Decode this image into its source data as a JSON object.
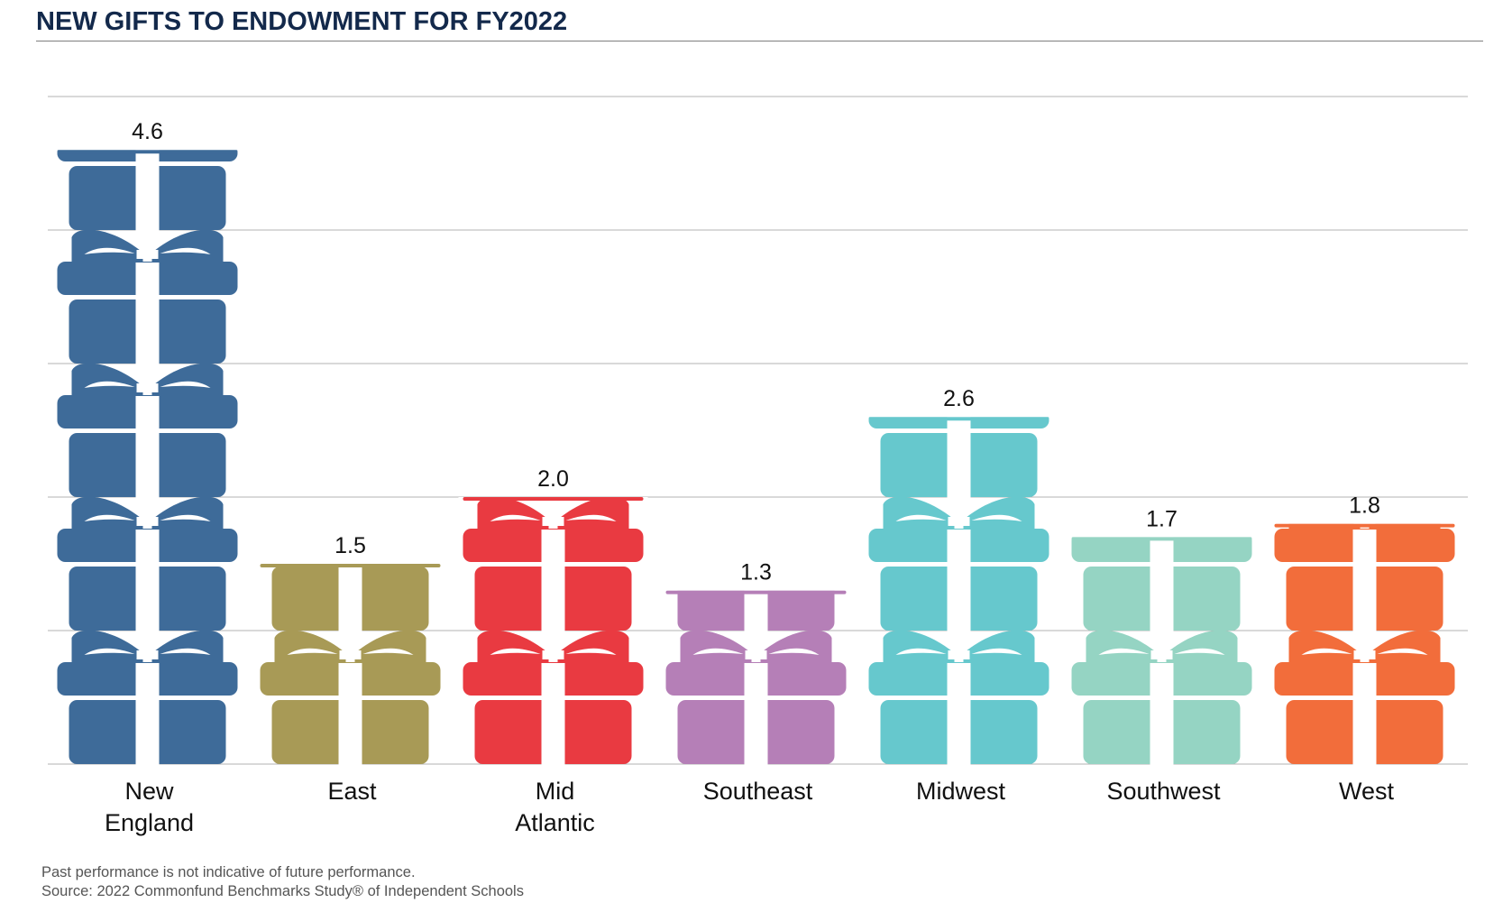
{
  "chart_data": {
    "type": "bar",
    "title": "NEW GIFTS TO ENDOWMENT FOR FY2022",
    "categories": [
      "New England",
      "East",
      "Mid Atlantic",
      "Southeast",
      "Midwest",
      "Southwest",
      "West"
    ],
    "category_lines": [
      [
        "New",
        "England"
      ],
      [
        "East"
      ],
      [
        "Mid",
        "Atlantic"
      ],
      [
        "Southeast"
      ],
      [
        "Midwest"
      ],
      [
        "Southwest"
      ],
      [
        "West"
      ]
    ],
    "values": [
      4.6,
      1.5,
      2.0,
      1.3,
      2.6,
      1.7,
      1.8
    ],
    "value_labels": [
      "4.6",
      "1.5",
      "2.0",
      "1.3",
      "2.6",
      "1.7",
      "1.8"
    ],
    "colors": [
      "#3e6b99",
      "#a89a56",
      "#e93a41",
      "#b57fb7",
      "#66c8cd",
      "#95d4c3",
      "#f26d3b"
    ],
    "xlabel": "",
    "ylabel": "",
    "ylim": [
      0,
      5
    ],
    "y_gridlines": [
      1,
      2,
      3,
      4,
      5
    ],
    "grid": true,
    "y_tick_labels_shown": false,
    "bar_style": "stacked gift-box icons"
  },
  "footnotes": {
    "note": "Past performance is not indicative of future performance.",
    "source": "Source: 2022 Commonfund Benchmarks Study® of Independent Schools"
  }
}
